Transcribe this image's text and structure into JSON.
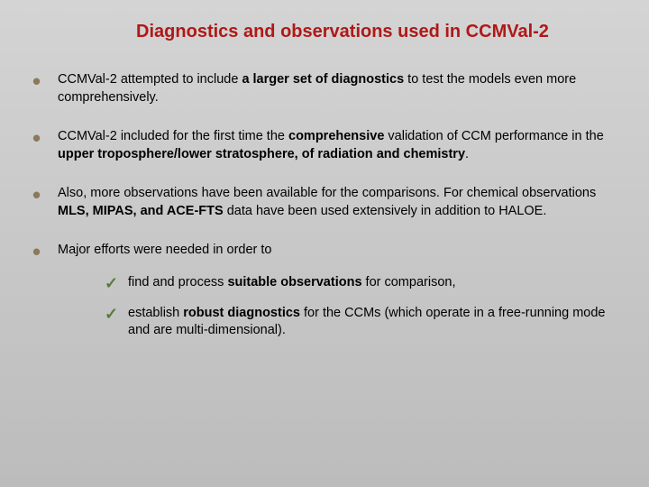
{
  "title": "Diagnostics and observations used in CCMVal-2",
  "bullets": {
    "b1": {
      "pre": "CCMVal-2 attempted to include ",
      "bold": "a larger set of diagnostics",
      "post": " to test the models even more comprehensively."
    },
    "b2": {
      "pre": "CCMVal-2 included for the first time the ",
      "bold1": "comprehensive",
      "mid": " validation of CCM performance in the ",
      "bold2": "upper troposphere/lower stratosphere, of radiation and chemistry",
      "post": "."
    },
    "b3": {
      "pre": "Also, more observations have been available for the comparisons. For chemical observations ",
      "bold": "MLS, MIPAS, and ACE-FTS",
      "post": " data have been used extensively in addition to HALOE."
    },
    "b4": {
      "text": "Major efforts were needed in order to"
    }
  },
  "sub": {
    "s1": {
      "pre": "find and process ",
      "bold": "suitable observations",
      "post": " for comparison,"
    },
    "s2": {
      "pre": "establish ",
      "bold": "robust diagnostics",
      "post": " for the CCMs (which operate in a free-running mode and are multi-dimensional)."
    }
  },
  "colors": {
    "title": "#b01818",
    "bullet_marker": "#8a7a5a",
    "check_marker": "#5a7a3a",
    "text": "#000000",
    "bg_top": "#d4d4d4",
    "bg_bottom": "#bcbcbc"
  },
  "typography": {
    "title_fontsize": 20,
    "body_fontsize": 14.5,
    "font_family": "Arial"
  }
}
